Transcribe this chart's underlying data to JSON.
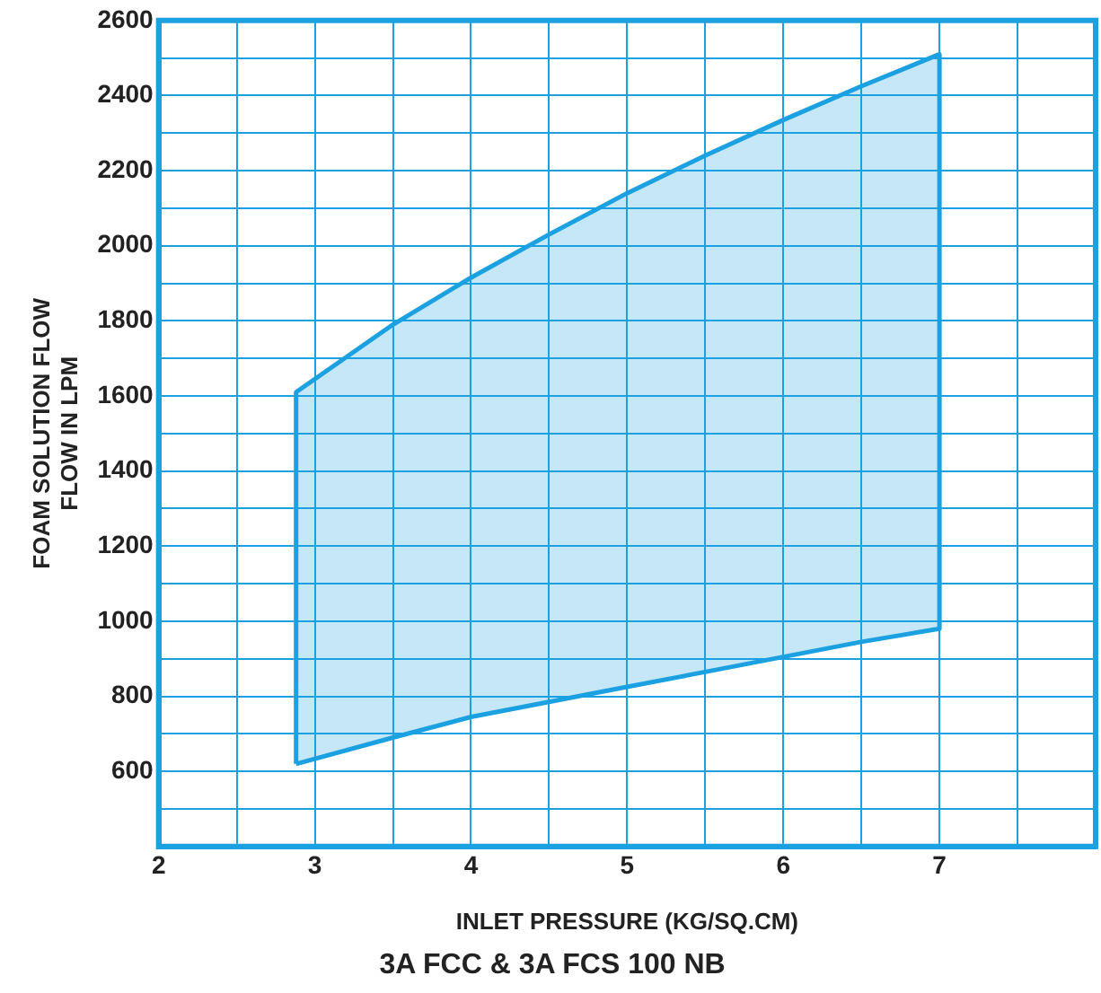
{
  "chart_data": {
    "type": "area",
    "title": "3A FCC & 3A FCS 100 NB",
    "xlabel": "INLET PRESSURE (KG/SQ.CM)",
    "ylabel": "FOAM SOLUTION FLOW\nFLOW IN LPM",
    "series": [
      {
        "color": "#1ba1e2",
        "x": [
          2.88,
          2.88,
          3.5,
          4,
          4.5,
          5,
          5.5,
          6,
          6.5,
          7,
          7,
          6.5,
          6,
          5.5,
          5,
          4.5,
          4,
          3.5,
          2.88
        ],
        "values": [
          620,
          1610,
          1790,
          1915,
          2030,
          2140,
          2240,
          2335,
          2425,
          2510,
          980,
          945,
          905,
          865,
          825,
          785,
          745,
          690,
          620
        ]
      }
    ],
    "xlim": [
      2,
      8
    ],
    "ylim": [
      400,
      2600
    ],
    "xticks": [
      2,
      {
        "value": 2.5,
        "label": null
      },
      3,
      {
        "value": 3.5,
        "label": null
      },
      4,
      {
        "value": 4.5,
        "label": null
      },
      5,
      {
        "value": 5.5,
        "label": null
      },
      6,
      {
        "value": 6.5,
        "label": null
      },
      7,
      {
        "value": 7.5,
        "label": null
      },
      {
        "value": 8,
        "label": null
      }
    ],
    "yticks": [
      {
        "value": 500,
        "label": null
      },
      600,
      {
        "value": 700,
        "label": null
      },
      800,
      {
        "value": 900,
        "label": null
      },
      1000,
      {
        "value": 1100,
        "label": null
      },
      1200,
      {
        "value": 1300,
        "label": null
      },
      1400,
      {
        "value": 1500,
        "label": null
      },
      1600,
      {
        "value": 1700,
        "label": null
      },
      1800,
      {
        "value": 1900,
        "label": null
      },
      2000,
      {
        "value": 2100,
        "label": null
      },
      2200,
      {
        "value": 2300,
        "label": null
      },
      2400,
      {
        "value": 2500,
        "label": null
      },
      2600
    ],
    "grid": true,
    "legend": false
  }
}
